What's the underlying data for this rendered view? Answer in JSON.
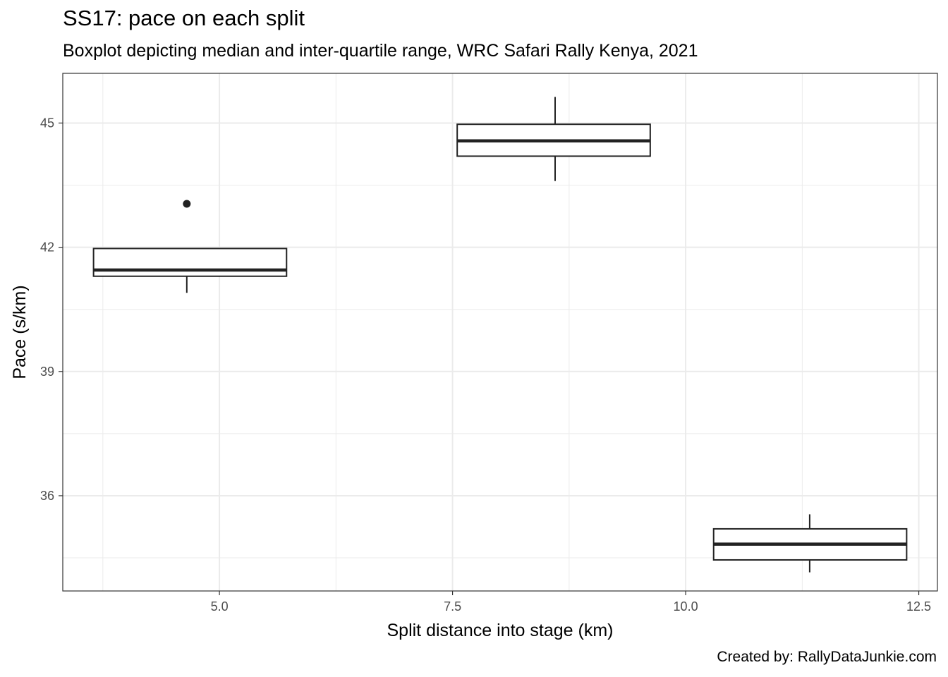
{
  "chart_data": {
    "type": "boxplot",
    "title": "SS17: pace on each split",
    "subtitle": "Boxplot depicting median and inter-quartile range, WRC Safari Rally Kenya, 2021",
    "caption": "Created by: RallyDataJunkie.com",
    "xlabel": "Split distance into stage (km)",
    "ylabel": "Pace (s/km)",
    "xlim": [
      3.32,
      12.7
    ],
    "ylim": [
      33.7,
      46.2
    ],
    "x_ticks": [
      5.0,
      7.5,
      10.0,
      12.5
    ],
    "x_tick_labels": [
      "5.0",
      "7.5",
      "10.0",
      "12.5"
    ],
    "x_minor_ticks": [
      3.75,
      6.25,
      8.75,
      11.25
    ],
    "y_ticks": [
      36,
      39,
      42,
      45
    ],
    "y_tick_labels": [
      "36",
      "39",
      "42",
      "45"
    ],
    "y_minor_ticks": [
      34.5,
      37.5,
      40.5,
      43.5
    ],
    "grid": true,
    "box_color": "#222222",
    "grid_color": "#ebebeb",
    "boxes": [
      {
        "x_min": 3.65,
        "x_max": 5.72,
        "x_center": 4.65,
        "whisker_low": 40.9,
        "q1": 41.3,
        "median": 41.45,
        "q3": 41.97,
        "whisker_high": 41.97,
        "outliers": [
          43.05
        ]
      },
      {
        "x_min": 7.55,
        "x_max": 9.62,
        "x_center": 8.6,
        "whisker_low": 43.6,
        "q1": 44.2,
        "median": 44.57,
        "q3": 44.97,
        "whisker_high": 45.63,
        "outliers": []
      },
      {
        "x_min": 10.3,
        "x_max": 12.37,
        "x_center": 11.33,
        "whisker_low": 34.15,
        "q1": 34.45,
        "median": 34.83,
        "q3": 35.2,
        "whisker_high": 35.55,
        "outliers": []
      }
    ]
  }
}
